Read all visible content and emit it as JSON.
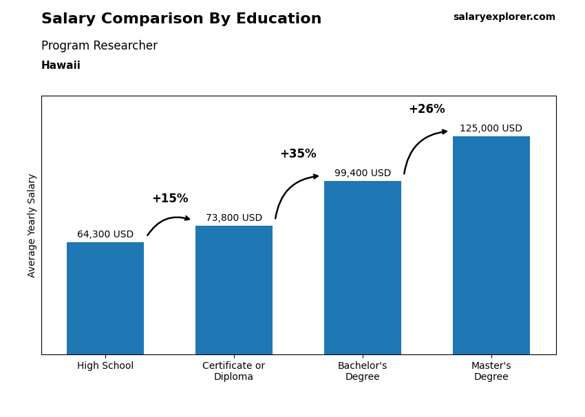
{
  "chart_data": {
    "type": "bar",
    "title": "Salary Comparison By Education",
    "subtitle": "Program Researcher",
    "ylabel": "Average Yearly Salary",
    "categories": [
      "High School",
      "Certificate or\nDiploma",
      "Bachelor's\nDegree",
      "Master's\nDegree"
    ],
    "values": [
      64300,
      73800,
      99400,
      125000
    ],
    "value_labels": [
      "64,300 USD",
      "73,800 USD",
      "99,400 USD",
      "125,000 USD"
    ],
    "data_labels": true,
    "ylim": [
      0,
      148000
    ],
    "yticks": [],
    "tick_labels": "x",
    "grid": false,
    "annotations": [
      {
        "text": "Hawaii"
      },
      {
        "text": "salaryexplorer.com"
      },
      {
        "text": "+15%",
        "from": "High School",
        "to": "Certificate or\nDiploma"
      },
      {
        "text": "+35%",
        "from": "Certificate or\nDiploma",
        "to": "Bachelor's\nDegree"
      },
      {
        "text": "+26%",
        "from": "Bachelor's\nDegree",
        "to": "Master's\nDegree"
      }
    ]
  }
}
